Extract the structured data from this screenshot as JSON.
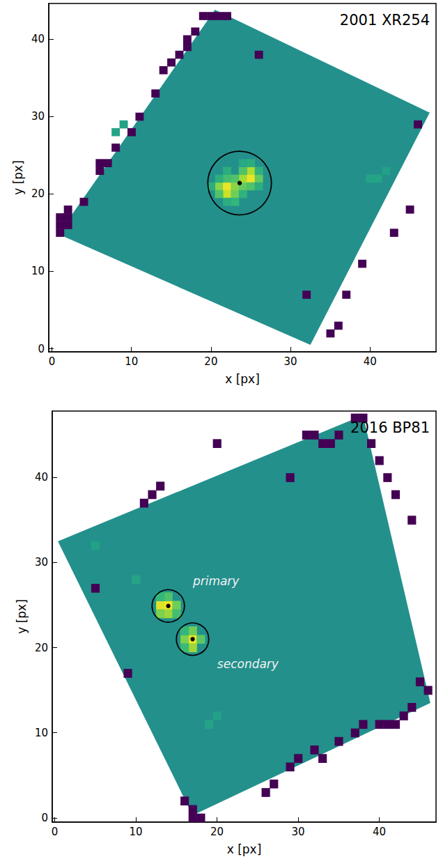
{
  "chart_data": [
    {
      "type": "heatmap",
      "title": "2001 XR254",
      "x_label": "x [px]",
      "y_label": "y [px]",
      "xlim": [
        -0.4,
        48.3
      ],
      "ylim": [
        -0.4,
        44.6
      ],
      "xticks": [
        0,
        10,
        20,
        30,
        40
      ],
      "yticks": [
        0,
        10,
        20,
        30,
        40
      ],
      "value_range": [
        0,
        1
      ],
      "footprint": [
        [
          20.5,
          43.8
        ],
        [
          47.5,
          30.5
        ],
        [
          32.5,
          0.5
        ],
        [
          0.8,
          14.8
        ]
      ],
      "background_value": 0.5,
      "cells": [
        [
          21,
          21,
          0.82
        ],
        [
          22,
          21,
          0.97
        ],
        [
          22,
          20,
          0.92
        ],
        [
          23,
          20,
          0.78
        ],
        [
          23,
          21,
          0.82
        ],
        [
          24,
          21,
          0.76
        ],
        [
          24,
          22,
          0.86
        ],
        [
          25,
          22,
          0.97
        ],
        [
          25,
          23,
          0.88
        ],
        [
          26,
          22,
          0.76
        ],
        [
          24,
          23,
          0.72
        ],
        [
          23,
          22,
          0.72
        ],
        [
          21,
          20,
          0.72
        ],
        [
          22,
          22,
          0.7
        ],
        [
          23,
          19,
          0.66
        ],
        [
          22,
          19,
          0.62
        ],
        [
          24,
          20,
          0.64
        ],
        [
          26,
          23,
          0.64
        ],
        [
          25,
          21,
          0.72
        ],
        [
          21,
          22,
          0.62
        ],
        [
          24,
          24,
          0.6
        ],
        [
          25,
          24,
          0.62
        ],
        [
          20,
          21,
          0.62
        ],
        [
          26,
          21,
          0.62
        ],
        [
          22,
          23,
          0.62
        ],
        [
          40,
          22,
          0.58
        ],
        [
          41,
          22,
          0.58
        ],
        [
          42,
          23,
          0.57
        ],
        [
          8,
          28,
          0.58
        ],
        [
          9,
          29,
          0.57
        ],
        [
          1,
          15,
          0
        ],
        [
          1,
          16,
          0
        ],
        [
          2,
          16,
          0
        ],
        [
          1,
          17,
          0
        ],
        [
          2,
          17,
          0
        ],
        [
          2,
          18,
          0
        ],
        [
          4,
          19,
          0
        ],
        [
          6,
          23,
          0
        ],
        [
          6,
          24,
          0
        ],
        [
          7,
          24,
          0
        ],
        [
          8,
          26,
          0
        ],
        [
          10,
          28,
          0
        ],
        [
          11,
          30,
          0
        ],
        [
          13,
          33,
          0
        ],
        [
          14,
          36,
          0
        ],
        [
          15,
          37,
          0
        ],
        [
          16,
          38,
          0
        ],
        [
          17,
          39,
          0
        ],
        [
          17,
          40,
          0
        ],
        [
          18,
          41,
          0
        ],
        [
          19,
          43,
          0
        ],
        [
          20,
          43,
          0
        ],
        [
          21,
          43,
          0
        ],
        [
          22,
          43,
          0
        ],
        [
          26,
          38,
          0
        ],
        [
          46,
          29,
          0
        ],
        [
          45,
          18,
          0
        ],
        [
          43,
          15,
          0
        ],
        [
          39,
          11,
          0
        ],
        [
          37,
          7,
          0
        ],
        [
          36,
          3,
          0
        ],
        [
          35,
          2,
          0
        ],
        [
          32,
          7,
          0
        ]
      ],
      "apertures": [
        {
          "x": 23.6,
          "y": 21.4,
          "r": 4.0
        }
      ]
    },
    {
      "type": "heatmap",
      "title": "2016 BP81",
      "x_label": "x [px]",
      "y_label": "y [px]",
      "xlim": [
        -0.3,
        47.0
      ],
      "ylim": [
        -0.5,
        47.8
      ],
      "xticks": [
        0,
        10,
        20,
        30,
        40
      ],
      "yticks": [
        0,
        10,
        20,
        30,
        40
      ],
      "value_range": [
        0,
        1
      ],
      "footprint": [
        [
          38.0,
          47.3
        ],
        [
          46.3,
          13.5
        ],
        [
          17.0,
          0.3
        ],
        [
          0.4,
          32.5
        ]
      ],
      "background_value": 0.5,
      "cells": [
        [
          13,
          25,
          0.95
        ],
        [
          14,
          25,
          0.98
        ],
        [
          14,
          24,
          0.85
        ],
        [
          13,
          24,
          0.8
        ],
        [
          15,
          25,
          0.78
        ],
        [
          14,
          26,
          0.72
        ],
        [
          15,
          24,
          0.7
        ],
        [
          13,
          26,
          0.66
        ],
        [
          17,
          21,
          0.97
        ],
        [
          17,
          20,
          0.85
        ],
        [
          16,
          21,
          0.8
        ],
        [
          17,
          22,
          0.78
        ],
        [
          18,
          21,
          0.74
        ],
        [
          16,
          20,
          0.68
        ],
        [
          16,
          22,
          0.66
        ],
        [
          10,
          28,
          0.58
        ],
        [
          5,
          32,
          0.57
        ],
        [
          19,
          11,
          0.58
        ],
        [
          20,
          12,
          0.57
        ],
        [
          31,
          45,
          0
        ],
        [
          32,
          45,
          0
        ],
        [
          33,
          44,
          0
        ],
        [
          34,
          44,
          0
        ],
        [
          35,
          45,
          0
        ],
        [
          37,
          47,
          0
        ],
        [
          38,
          47,
          0
        ],
        [
          39,
          44,
          0
        ],
        [
          40,
          42,
          0
        ],
        [
          41,
          40,
          0
        ],
        [
          42,
          38,
          0
        ],
        [
          44,
          35,
          0
        ],
        [
          45,
          16,
          0
        ],
        [
          46,
          15,
          0
        ],
        [
          44,
          13,
          0
        ],
        [
          43,
          12,
          0
        ],
        [
          42,
          11,
          0
        ],
        [
          41,
          11,
          0
        ],
        [
          40,
          11,
          0
        ],
        [
          38,
          11,
          0
        ],
        [
          37,
          10,
          0
        ],
        [
          35,
          9,
          0
        ],
        [
          33,
          7,
          0
        ],
        [
          32,
          8,
          0
        ],
        [
          30,
          7,
          0
        ],
        [
          29,
          6,
          0
        ],
        [
          27,
          4,
          0
        ],
        [
          26,
          3,
          0
        ],
        [
          17,
          1,
          0
        ],
        [
          18,
          0,
          0
        ],
        [
          17,
          0,
          0
        ],
        [
          16,
          2,
          0
        ],
        [
          9,
          17,
          0
        ],
        [
          5,
          27,
          0
        ],
        [
          11,
          37,
          0
        ],
        [
          12,
          38,
          0
        ],
        [
          13,
          39,
          0
        ],
        [
          20,
          44,
          0
        ],
        [
          29,
          40,
          0
        ]
      ],
      "apertures": [
        {
          "x": 14.0,
          "y": 24.9,
          "r": 2.0,
          "label": "primary"
        },
        {
          "x": 17.0,
          "y": 21.0,
          "r": 2.0,
          "label": "secondary"
        }
      ]
    }
  ]
}
